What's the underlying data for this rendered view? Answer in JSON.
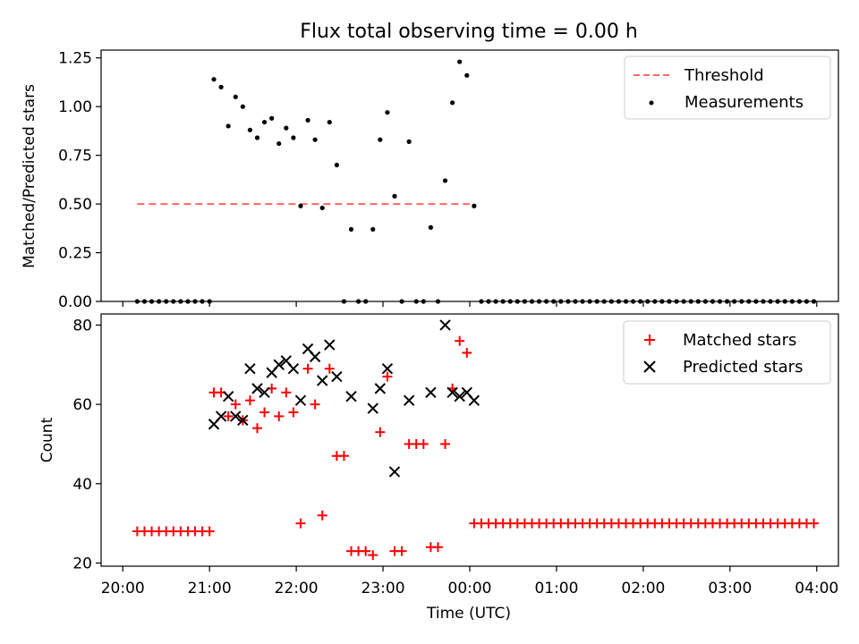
{
  "title": "Flux total observing time = 0.00 h",
  "colors": {
    "threshold": "#ff6666",
    "measurements": "#000000",
    "matched": "#ff0000",
    "predicted": "#000000"
  },
  "chart_data": [
    {
      "type": "scatter",
      "title": "Flux total observing time = 0.00 h",
      "xlabel": "",
      "ylabel": "Matched/Predicted stars",
      "xlim": [
        "19:45",
        "04:15"
      ],
      "ylim": [
        0,
        1.29
      ],
      "yticks": [
        "0.00",
        "0.25",
        "0.50",
        "0.75",
        "1.00",
        "1.25"
      ],
      "yticks_values": [
        0,
        0.25,
        0.5,
        0.75,
        1.0,
        1.25
      ],
      "legend_position": "top-right",
      "series": [
        {
          "name": "Threshold",
          "style": "dashed-line",
          "color": "#ff6666",
          "x": [
            "20:10",
            "24:00"
          ],
          "y": [
            0.5,
            0.5
          ]
        },
        {
          "name": "Measurements",
          "style": "dot",
          "color": "#000000",
          "x": [
            "20:10",
            "20:15",
            "20:20",
            "20:25",
            "20:30",
            "20:35",
            "20:40",
            "20:45",
            "20:50",
            "20:55",
            "21:00",
            "21:03",
            "21:08",
            "21:13",
            "21:18",
            "21:23",
            "21:28",
            "21:33",
            "21:38",
            "21:43",
            "21:48",
            "21:53",
            "21:58",
            "22:03",
            "22:08",
            "22:13",
            "22:18",
            "22:23",
            "22:28",
            "22:33",
            "22:38",
            "22:43",
            "22:48",
            "22:53",
            "22:58",
            "23:03",
            "23:08",
            "23:13",
            "23:18",
            "23:23",
            "23:28",
            "23:33",
            "23:38",
            "23:43",
            "23:48",
            "23:53",
            "23:58",
            "24:03",
            "24:08",
            "24:13",
            "24:18",
            "24:23",
            "24:28",
            "24:33",
            "24:38",
            "24:43",
            "24:48",
            "24:53",
            "24:58",
            "25:03",
            "25:08",
            "25:13",
            "25:18",
            "25:23",
            "25:28",
            "25:33",
            "25:38",
            "25:43",
            "25:48",
            "25:53",
            "25:58",
            "26:03",
            "26:08",
            "26:13",
            "26:18",
            "26:23",
            "26:28",
            "26:33",
            "26:38",
            "26:43",
            "26:48",
            "26:53",
            "26:58",
            "27:03",
            "27:08",
            "27:13",
            "27:18",
            "27:23",
            "27:28",
            "27:33",
            "27:38",
            "27:43",
            "27:48",
            "27:53",
            "27:58"
          ],
          "y": [
            0,
            0,
            0,
            0,
            0,
            0,
            0,
            0,
            0,
            0,
            0,
            1.14,
            1.1,
            0.9,
            1.05,
            1.0,
            0.88,
            0.84,
            0.92,
            0.94,
            0.81,
            0.89,
            0.84,
            0.49,
            0.93,
            0.83,
            0.48,
            0.92,
            0.7,
            0,
            0.37,
            0,
            0,
            0.37,
            0.83,
            0.97,
            0.54,
            0,
            0.82,
            0,
            0,
            0.38,
            0,
            0.62,
            1.02,
            1.23,
            1.16,
            0.49,
            0,
            0,
            0,
            0,
            0,
            0,
            0,
            0,
            0,
            0,
            0,
            0,
            0,
            0,
            0,
            0,
            0,
            0,
            0,
            0,
            0,
            0,
            0,
            0,
            0,
            0,
            0,
            0,
            0,
            0,
            0,
            0,
            0,
            0,
            0,
            0,
            0,
            0,
            0,
            0,
            0,
            0,
            0,
            0,
            0,
            0,
            0
          ]
        }
      ]
    },
    {
      "type": "scatter",
      "xlabel": "Time (UTC)",
      "ylabel": "Count",
      "xlim": [
        "19:45",
        "04:15"
      ],
      "ylim": [
        19.2,
        82.8
      ],
      "yticks": [
        "20",
        "40",
        "60",
        "80"
      ],
      "yticks_values": [
        20,
        40,
        60,
        80
      ],
      "xticks": [
        "20:00",
        "21:00",
        "22:00",
        "23:00",
        "00:00",
        "01:00",
        "02:00",
        "03:00",
        "04:00"
      ],
      "legend_position": "top-right",
      "series": [
        {
          "name": "Matched stars",
          "marker": "plus",
          "color": "#ff0000",
          "x": [
            "20:10",
            "20:15",
            "20:20",
            "20:25",
            "20:30",
            "20:35",
            "20:40",
            "20:45",
            "20:50",
            "20:55",
            "21:00",
            "21:03",
            "21:08",
            "21:13",
            "21:18",
            "21:23",
            "21:28",
            "21:33",
            "21:38",
            "21:43",
            "21:48",
            "21:53",
            "21:58",
            "22:03",
            "22:08",
            "22:13",
            "22:18",
            "22:23",
            "22:28",
            "22:33",
            "22:38",
            "22:43",
            "22:48",
            "22:53",
            "22:58",
            "23:03",
            "23:08",
            "23:13",
            "23:18",
            "23:23",
            "23:28",
            "23:33",
            "23:38",
            "23:43",
            "23:48",
            "23:53",
            "23:58",
            "24:03",
            "24:08",
            "24:13",
            "24:18",
            "24:23",
            "24:28",
            "24:33",
            "24:38",
            "24:43",
            "24:48",
            "24:53",
            "24:58",
            "25:03",
            "25:08",
            "25:13",
            "25:18",
            "25:23",
            "25:28",
            "25:33",
            "25:38",
            "25:43",
            "25:48",
            "25:53",
            "25:58",
            "26:03",
            "26:08",
            "26:13",
            "26:18",
            "26:23",
            "26:28",
            "26:33",
            "26:38",
            "26:43",
            "26:48",
            "26:53",
            "26:58",
            "27:03",
            "27:08",
            "27:13",
            "27:18",
            "27:23",
            "27:28",
            "27:33",
            "27:38",
            "27:43",
            "27:48",
            "27:53",
            "27:58"
          ],
          "y": [
            28,
            28,
            28,
            28,
            28,
            28,
            28,
            28,
            28,
            28,
            28,
            63,
            63,
            57,
            60,
            56,
            61,
            54,
            58,
            64,
            57,
            63,
            58,
            30,
            69,
            60,
            32,
            69,
            47,
            47,
            23,
            23,
            23,
            22,
            53,
            67,
            23,
            23,
            50,
            50,
            50,
            24,
            24,
            50,
            64,
            76,
            73,
            30,
            30,
            30,
            30,
            30,
            30,
            30,
            30,
            30,
            30,
            30,
            30,
            30,
            30,
            30,
            30,
            30,
            30,
            30,
            30,
            30,
            30,
            30,
            30,
            30,
            30,
            30,
            30,
            30,
            30,
            30,
            30,
            30,
            30,
            30,
            30,
            30,
            30,
            30,
            30,
            30,
            30,
            30,
            30,
            30,
            30,
            30,
            30
          ]
        },
        {
          "name": "Predicted stars",
          "marker": "x",
          "color": "#000000",
          "x": [
            "21:03",
            "21:08",
            "21:13",
            "21:18",
            "21:23",
            "21:28",
            "21:33",
            "21:38",
            "21:43",
            "21:48",
            "21:53",
            "21:58",
            "22:03",
            "22:08",
            "22:13",
            "22:18",
            "22:23",
            "22:28",
            "22:38",
            "22:53",
            "22:58",
            "23:03",
            "23:08",
            "23:18",
            "23:33",
            "23:43",
            "23:48",
            "23:53",
            "23:58",
            "24:03"
          ],
          "y": [
            55,
            57,
            62,
            57,
            56,
            69,
            64,
            63,
            68,
            70,
            71,
            69,
            61,
            74,
            72,
            66,
            75,
            67,
            62,
            59,
            64,
            69,
            43,
            61,
            63,
            80,
            63,
            62,
            63,
            61
          ]
        }
      ]
    }
  ]
}
